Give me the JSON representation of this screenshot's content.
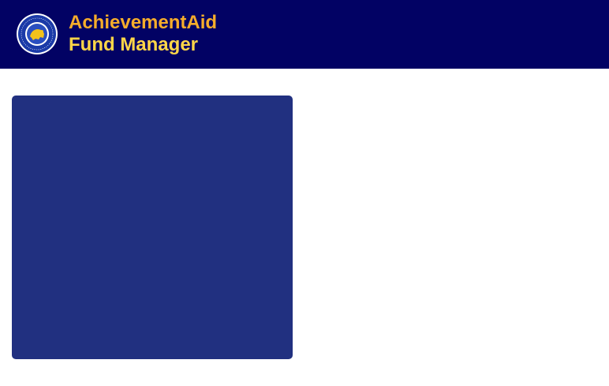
{
  "app": {
    "title_line_1": "AchievementAid",
    "title_line_2": "Fund Manager",
    "logo": {
      "icon": "university-seal-icon",
      "seal_text_top": "PANGASINAN STATE UNIVERSITY",
      "seal_year": "1979"
    }
  },
  "colors": {
    "header_background": "#020264",
    "title_primary": "#f6ad2b",
    "title_secondary": "#ffd648",
    "panel_background": "#213080",
    "page_background": "#ffffff"
  }
}
